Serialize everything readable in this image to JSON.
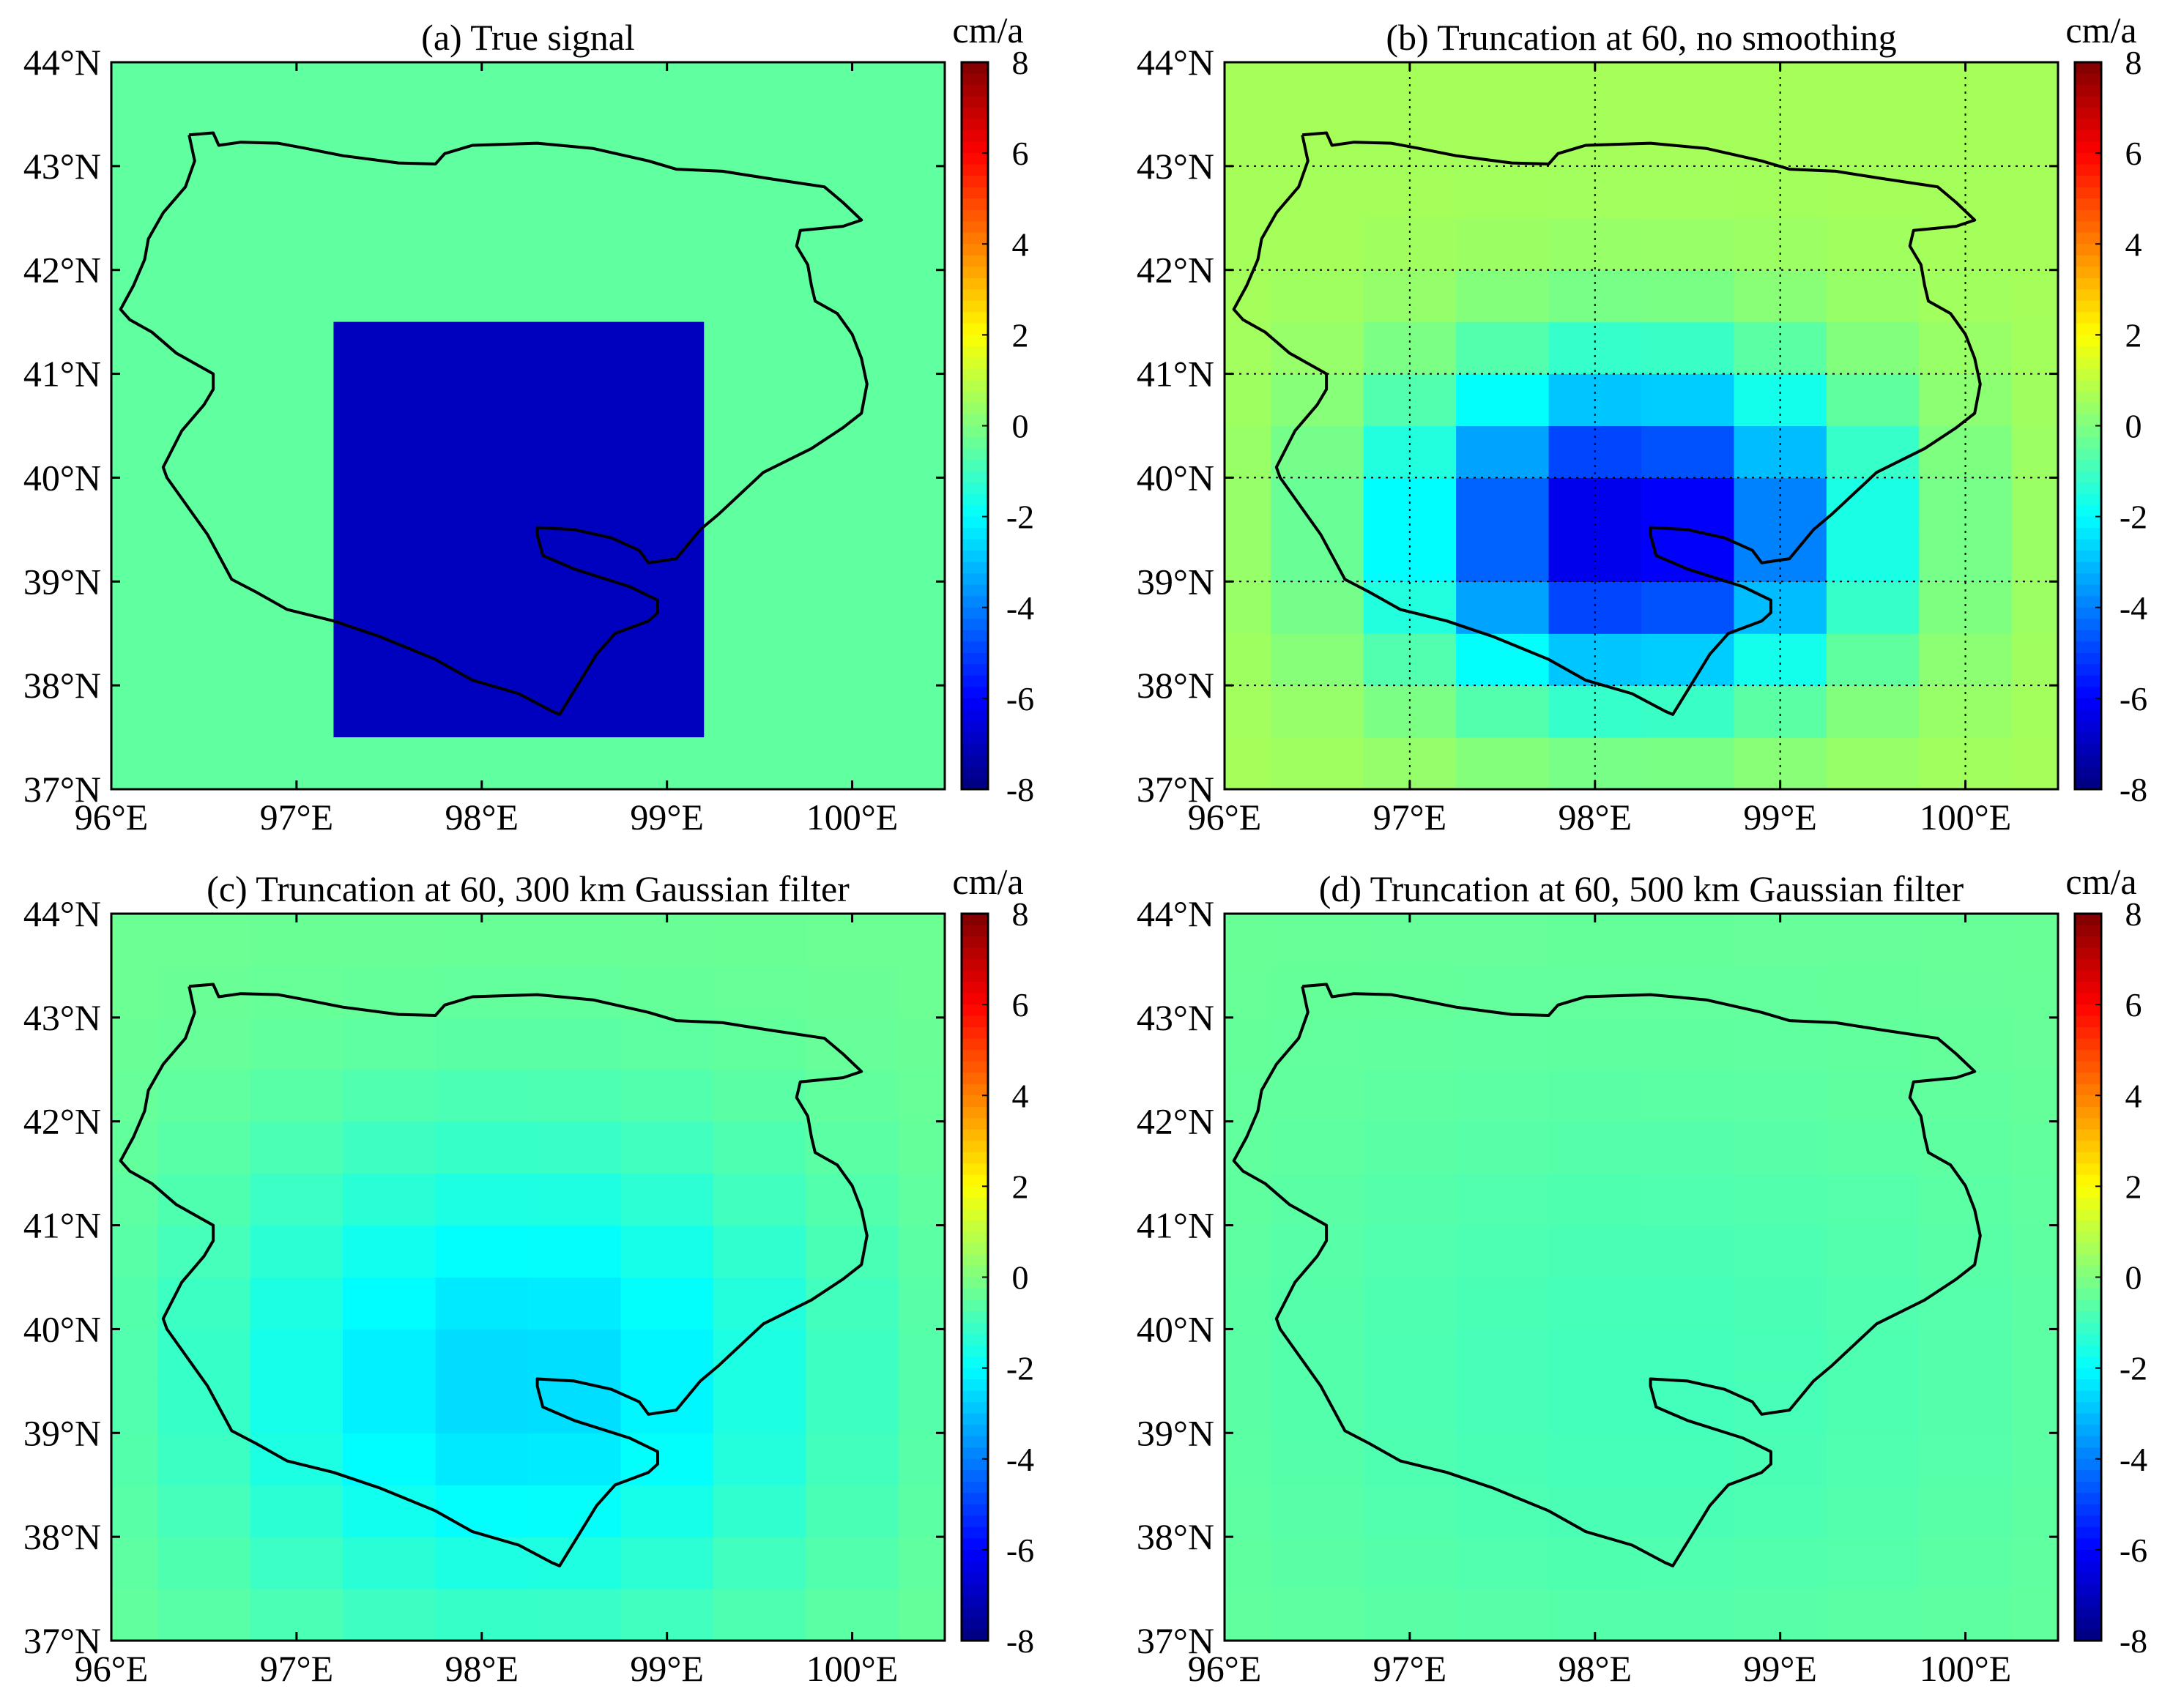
{
  "colorbar": {
    "unit": "cm/a",
    "range": [
      -8,
      8
    ],
    "tick_labels": [
      "8",
      "6",
      "4",
      "2",
      "0",
      "-2",
      "-4",
      "-6",
      "-8"
    ]
  },
  "axes": {
    "x_tick_labels": [
      "96°E",
      "97°E",
      "98°E",
      "99°E",
      "100°E"
    ],
    "y_tick_labels": [
      "44°N",
      "43°N",
      "42°N",
      "41°N",
      "40°N",
      "39°N",
      "38°N",
      "37°N"
    ]
  },
  "chart_data": [
    {
      "type": "heatmap",
      "title": "(a) True signal",
      "xlim": [
        96,
        100.5
      ],
      "ylim": [
        37,
        44
      ],
      "grid": false,
      "field": {
        "kind": "box",
        "background": -0.5,
        "box_value": -7.0,
        "lon_range": [
          97.2,
          99.2
        ],
        "lat_range": [
          37.5,
          41.5
        ]
      }
    },
    {
      "type": "heatmap",
      "title": "(b) Truncation at 60, no smoothing",
      "xlim": [
        96,
        100.5
      ],
      "ylim": [
        37,
        44
      ],
      "grid": true,
      "field": {
        "kind": "blob",
        "center_lon": 98.2,
        "center_lat": 39.5,
        "peak": -7.3,
        "sigma_lon": 0.85,
        "sigma_lat": 1.05,
        "offset": 0.6
      }
    },
    {
      "type": "heatmap",
      "title": "(c) Truncation at 60, 300 km Gaussian filter",
      "xlim": [
        96,
        100.5
      ],
      "ylim": [
        37,
        44
      ],
      "grid": false,
      "field": {
        "kind": "blob",
        "center_lon": 98.2,
        "center_lat": 39.5,
        "peak": -2.3,
        "sigma_lon": 1.2,
        "sigma_lat": 1.6,
        "offset": -0.3
      }
    },
    {
      "type": "heatmap",
      "title": "(d) Truncation at 60, 500 km Gaussian filter",
      "xlim": [
        96,
        100.5
      ],
      "ylim": [
        37,
        44
      ],
      "grid": false,
      "field": {
        "kind": "blob",
        "center_lon": 98.2,
        "center_lat": 39.5,
        "peak": -0.6,
        "sigma_lon": 1.6,
        "sigma_lat": 2.0,
        "offset": -0.35
      }
    }
  ],
  "basin_outline": [
    [
      96.42,
      43.3
    ],
    [
      96.55,
      43.32
    ],
    [
      96.58,
      43.2
    ],
    [
      96.7,
      43.23
    ],
    [
      96.9,
      43.22
    ],
    [
      97.05,
      43.17
    ],
    [
      97.25,
      43.1
    ],
    [
      97.55,
      43.03
    ],
    [
      97.75,
      43.02
    ],
    [
      97.8,
      43.12
    ],
    [
      97.95,
      43.2
    ],
    [
      98.3,
      43.22
    ],
    [
      98.6,
      43.17
    ],
    [
      98.9,
      43.05
    ],
    [
      99.05,
      42.97
    ],
    [
      99.3,
      42.95
    ],
    [
      99.55,
      42.88
    ],
    [
      99.85,
      42.8
    ],
    [
      99.95,
      42.65
    ],
    [
      100.05,
      42.48
    ],
    [
      99.95,
      42.42
    ],
    [
      99.72,
      42.38
    ],
    [
      99.7,
      42.23
    ],
    [
      99.76,
      42.05
    ],
    [
      99.78,
      41.85
    ],
    [
      99.8,
      41.7
    ],
    [
      99.92,
      41.58
    ],
    [
      100.0,
      41.38
    ],
    [
      100.05,
      41.15
    ],
    [
      100.08,
      40.9
    ],
    [
      100.05,
      40.62
    ],
    [
      99.95,
      40.48
    ],
    [
      99.78,
      40.28
    ],
    [
      99.52,
      40.05
    ],
    [
      99.28,
      39.65
    ],
    [
      99.18,
      39.5
    ],
    [
      99.05,
      39.22
    ],
    [
      98.9,
      39.18
    ],
    [
      98.85,
      39.3
    ],
    [
      98.7,
      39.42
    ],
    [
      98.5,
      39.5
    ],
    [
      98.3,
      39.52
    ],
    [
      98.3,
      39.45
    ],
    [
      98.33,
      39.25
    ],
    [
      98.5,
      39.12
    ],
    [
      98.8,
      38.95
    ],
    [
      98.95,
      38.82
    ],
    [
      98.95,
      38.7
    ],
    [
      98.9,
      38.62
    ],
    [
      98.72,
      38.5
    ],
    [
      98.62,
      38.3
    ],
    [
      98.5,
      37.95
    ],
    [
      98.42,
      37.72
    ],
    [
      98.38,
      37.75
    ],
    [
      98.2,
      37.92
    ],
    [
      97.95,
      38.05
    ],
    [
      97.75,
      38.25
    ],
    [
      97.45,
      38.47
    ],
    [
      97.2,
      38.62
    ],
    [
      96.95,
      38.73
    ],
    [
      96.78,
      38.9
    ],
    [
      96.65,
      39.02
    ],
    [
      96.52,
      39.45
    ],
    [
      96.4,
      39.75
    ],
    [
      96.3,
      40.0
    ],
    [
      96.28,
      40.1
    ],
    [
      96.38,
      40.45
    ],
    [
      96.5,
      40.7
    ],
    [
      96.55,
      40.85
    ],
    [
      96.55,
      41.0
    ],
    [
      96.35,
      41.2
    ],
    [
      96.22,
      41.4
    ],
    [
      96.1,
      41.52
    ],
    [
      96.05,
      41.62
    ],
    [
      96.12,
      41.85
    ],
    [
      96.18,
      42.1
    ],
    [
      96.2,
      42.3
    ],
    [
      96.28,
      42.55
    ],
    [
      96.4,
      42.8
    ],
    [
      96.45,
      43.05
    ],
    [
      96.42,
      43.3
    ]
  ]
}
